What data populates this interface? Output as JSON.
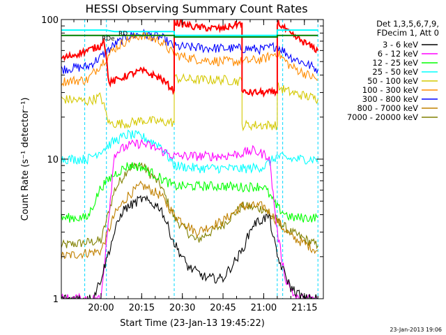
{
  "chart_data": {
    "type": "line",
    "title": "HESSI Observing Summary Count Rates",
    "xlabel": "Start Time (23-Jan-13 19:45:22)",
    "ylabel": "Count Rate (s⁻¹ detector⁻¹)",
    "y_scale": "log",
    "ylim": [
      1,
      100
    ],
    "xlim": [
      "19:45:22",
      "21:22:00"
    ],
    "x_ticks": [
      "20:00",
      "20:15",
      "20:30",
      "20:45",
      "21:00",
      "21:15"
    ],
    "y_ticks": [
      "1",
      "10",
      "100"
    ],
    "legend_header": [
      "Det 1,3,5,6,7,9,",
      "FDecim 1, Att 0"
    ],
    "legend_position": "right",
    "grid": false,
    "annotations": [
      "RD",
      "RDe"
    ],
    "timestamp": "23-Jan-2013 19:06",
    "vertical_markers": [
      "19:54",
      "20:02",
      "20:27",
      "21:05",
      "21:07",
      "21:20"
    ],
    "series": [
      {
        "name": "3 - 6 keV",
        "color": "#000000",
        "x": [
          "19:45",
          "19:57",
          "20:00",
          "20:05",
          "20:08",
          "20:15",
          "20:22",
          "20:27",
          "20:32",
          "20:39",
          "20:45",
          "20:52",
          "20:56",
          "21:02",
          "21:05",
          "21:10",
          "21:15",
          "21:20"
        ],
        "y": [
          1,
          1,
          1.4,
          3.0,
          4.3,
          5.2,
          4.5,
          2.5,
          1.7,
          1.4,
          1.4,
          2.2,
          3.4,
          3.9,
          2.0,
          1.2,
          1,
          1
        ]
      },
      {
        "name": "6 - 12 keV",
        "color": "#ff00ff",
        "x": [
          "19:45",
          "20:00",
          "20:05",
          "20:10",
          "20:15",
          "20:20",
          "20:27",
          "20:35",
          "20:45",
          "20:52",
          "20:56",
          "21:02",
          "21:05",
          "21:08",
          "21:12",
          "21:20"
        ],
        "y": [
          1,
          1,
          11,
          12.5,
          13,
          12,
          10.5,
          10.5,
          10.5,
          11,
          11.5,
          10.5,
          3.0,
          1.4,
          1,
          1
        ]
      },
      {
        "name": "12 - 25 keV",
        "color": "#00ff00",
        "x": [
          "19:45",
          "19:55",
          "20:00",
          "20:05",
          "20:10",
          "20:15",
          "20:22",
          "20:27",
          "20:35",
          "20:45",
          "20:52",
          "21:00",
          "21:05",
          "21:10",
          "21:20"
        ],
        "y": [
          3.8,
          3.8,
          6.3,
          7.8,
          9.0,
          8.8,
          7.3,
          6.4,
          6.4,
          6.4,
          6.3,
          6.4,
          4.5,
          3.8,
          3.8
        ]
      },
      {
        "name": "25 - 50 keV",
        "color": "#00ffff",
        "x": [
          "19:45",
          "19:55",
          "20:00",
          "20:05",
          "20:10",
          "20:15",
          "20:22",
          "20:27",
          "20:35",
          "20:45",
          "20:52",
          "21:00",
          "21:05",
          "21:10",
          "21:20"
        ],
        "y": [
          10,
          10,
          11.5,
          13.5,
          15,
          14.5,
          12.5,
          9.0,
          8.6,
          8.6,
          8.5,
          8.8,
          10.5,
          10,
          10
        ]
      },
      {
        "name": "50 - 100 keV",
        "color": "#d4c800",
        "x": [
          "19:45",
          "19:55",
          "20:00",
          "20:03",
          "20:10",
          "20:15",
          "20:22",
          "20:27",
          "20:27",
          "20:35",
          "20:45",
          "20:52",
          "20:52",
          "21:00",
          "21:05",
          "21:05",
          "21:10",
          "21:20"
        ],
        "y": [
          27,
          26,
          28,
          18,
          18,
          19,
          18.5,
          18.3,
          38,
          37,
          37,
          36,
          17.5,
          17.5,
          17.5,
          33,
          30,
          27
        ]
      },
      {
        "name": "100 - 300 keV",
        "color": "#ff8c00",
        "x": [
          "19:45",
          "19:55",
          "20:00",
          "20:05",
          "20:10",
          "20:15",
          "20:22",
          "20:27",
          "20:35",
          "20:45",
          "20:52",
          "21:00",
          "21:05",
          "21:10",
          "21:20"
        ],
        "y": [
          36,
          37,
          48,
          62,
          72,
          77,
          70,
          56,
          52,
          50,
          50,
          52,
          58,
          46,
          37
        ]
      },
      {
        "name": "300 - 800 keV",
        "color": "#0000ff",
        "x": [
          "19:45",
          "19:55",
          "20:00",
          "20:05",
          "20:10",
          "20:15",
          "20:22",
          "20:27",
          "20:35",
          "20:45",
          "20:52",
          "21:00",
          "21:05",
          "21:10",
          "21:20"
        ],
        "y": [
          44,
          46,
          54,
          66,
          76,
          79,
          75,
          64,
          63,
          62,
          62,
          61,
          65,
          54,
          44
        ]
      },
      {
        "name": "800 - 7000 keV",
        "color": "#c08000",
        "x": [
          "19:45",
          "20:00",
          "20:05",
          "20:10",
          "20:15",
          "20:22",
          "20:27",
          "20:35",
          "20:45",
          "20:52",
          "21:00",
          "21:10",
          "21:20"
        ],
        "y": [
          2.0,
          2.2,
          4.0,
          5.5,
          6.5,
          5.5,
          4.0,
          3.0,
          3.6,
          4.6,
          4.6,
          2.8,
          2.2
        ]
      },
      {
        "name": "7000 - 20000 keV",
        "color": "#808000",
        "x": [
          "19:45",
          "20:00",
          "20:05",
          "20:10",
          "20:15",
          "20:22",
          "20:27",
          "20:35",
          "20:45",
          "20:52",
          "21:00",
          "21:10",
          "21:20"
        ],
        "y": [
          2.4,
          2.6,
          6.0,
          8.6,
          9.1,
          6.5,
          3.8,
          2.6,
          3.4,
          4.6,
          4.4,
          3.0,
          2.4
        ]
      }
    ],
    "upper_traces": [
      {
        "color": "#ff0000",
        "x": [
          "19:45",
          "19:55",
          "20:00",
          "20:01",
          "20:03",
          "20:10",
          "20:15",
          "20:22",
          "20:27",
          "20:27",
          "20:35",
          "20:45",
          "20:52",
          "20:52",
          "21:00",
          "21:05",
          "21:05",
          "21:10",
          "21:20"
        ],
        "y": [
          52,
          60,
          65,
          75,
          35,
          40,
          43,
          38,
          31,
          96,
          88,
          86,
          95,
          30,
          30,
          30,
          96,
          78,
          60
        ]
      },
      {
        "color": "#00ffff",
        "x": [
          "19:45",
          "20:02",
          "20:05",
          "20:27",
          "20:27",
          "20:52",
          "20:52",
          "21:05",
          "21:05",
          "21:07",
          "21:20"
        ],
        "y": [
          84,
          84,
          82,
          82,
          77,
          77,
          77,
          77,
          84,
          84,
          84
        ]
      },
      {
        "color": "#008000",
        "x": [
          "19:45",
          "20:02",
          "20:27",
          "20:27",
          "21:05",
          "21:05",
          "21:20"
        ],
        "y": [
          77,
          77,
          77,
          75,
          75,
          77,
          77
        ]
      }
    ]
  }
}
